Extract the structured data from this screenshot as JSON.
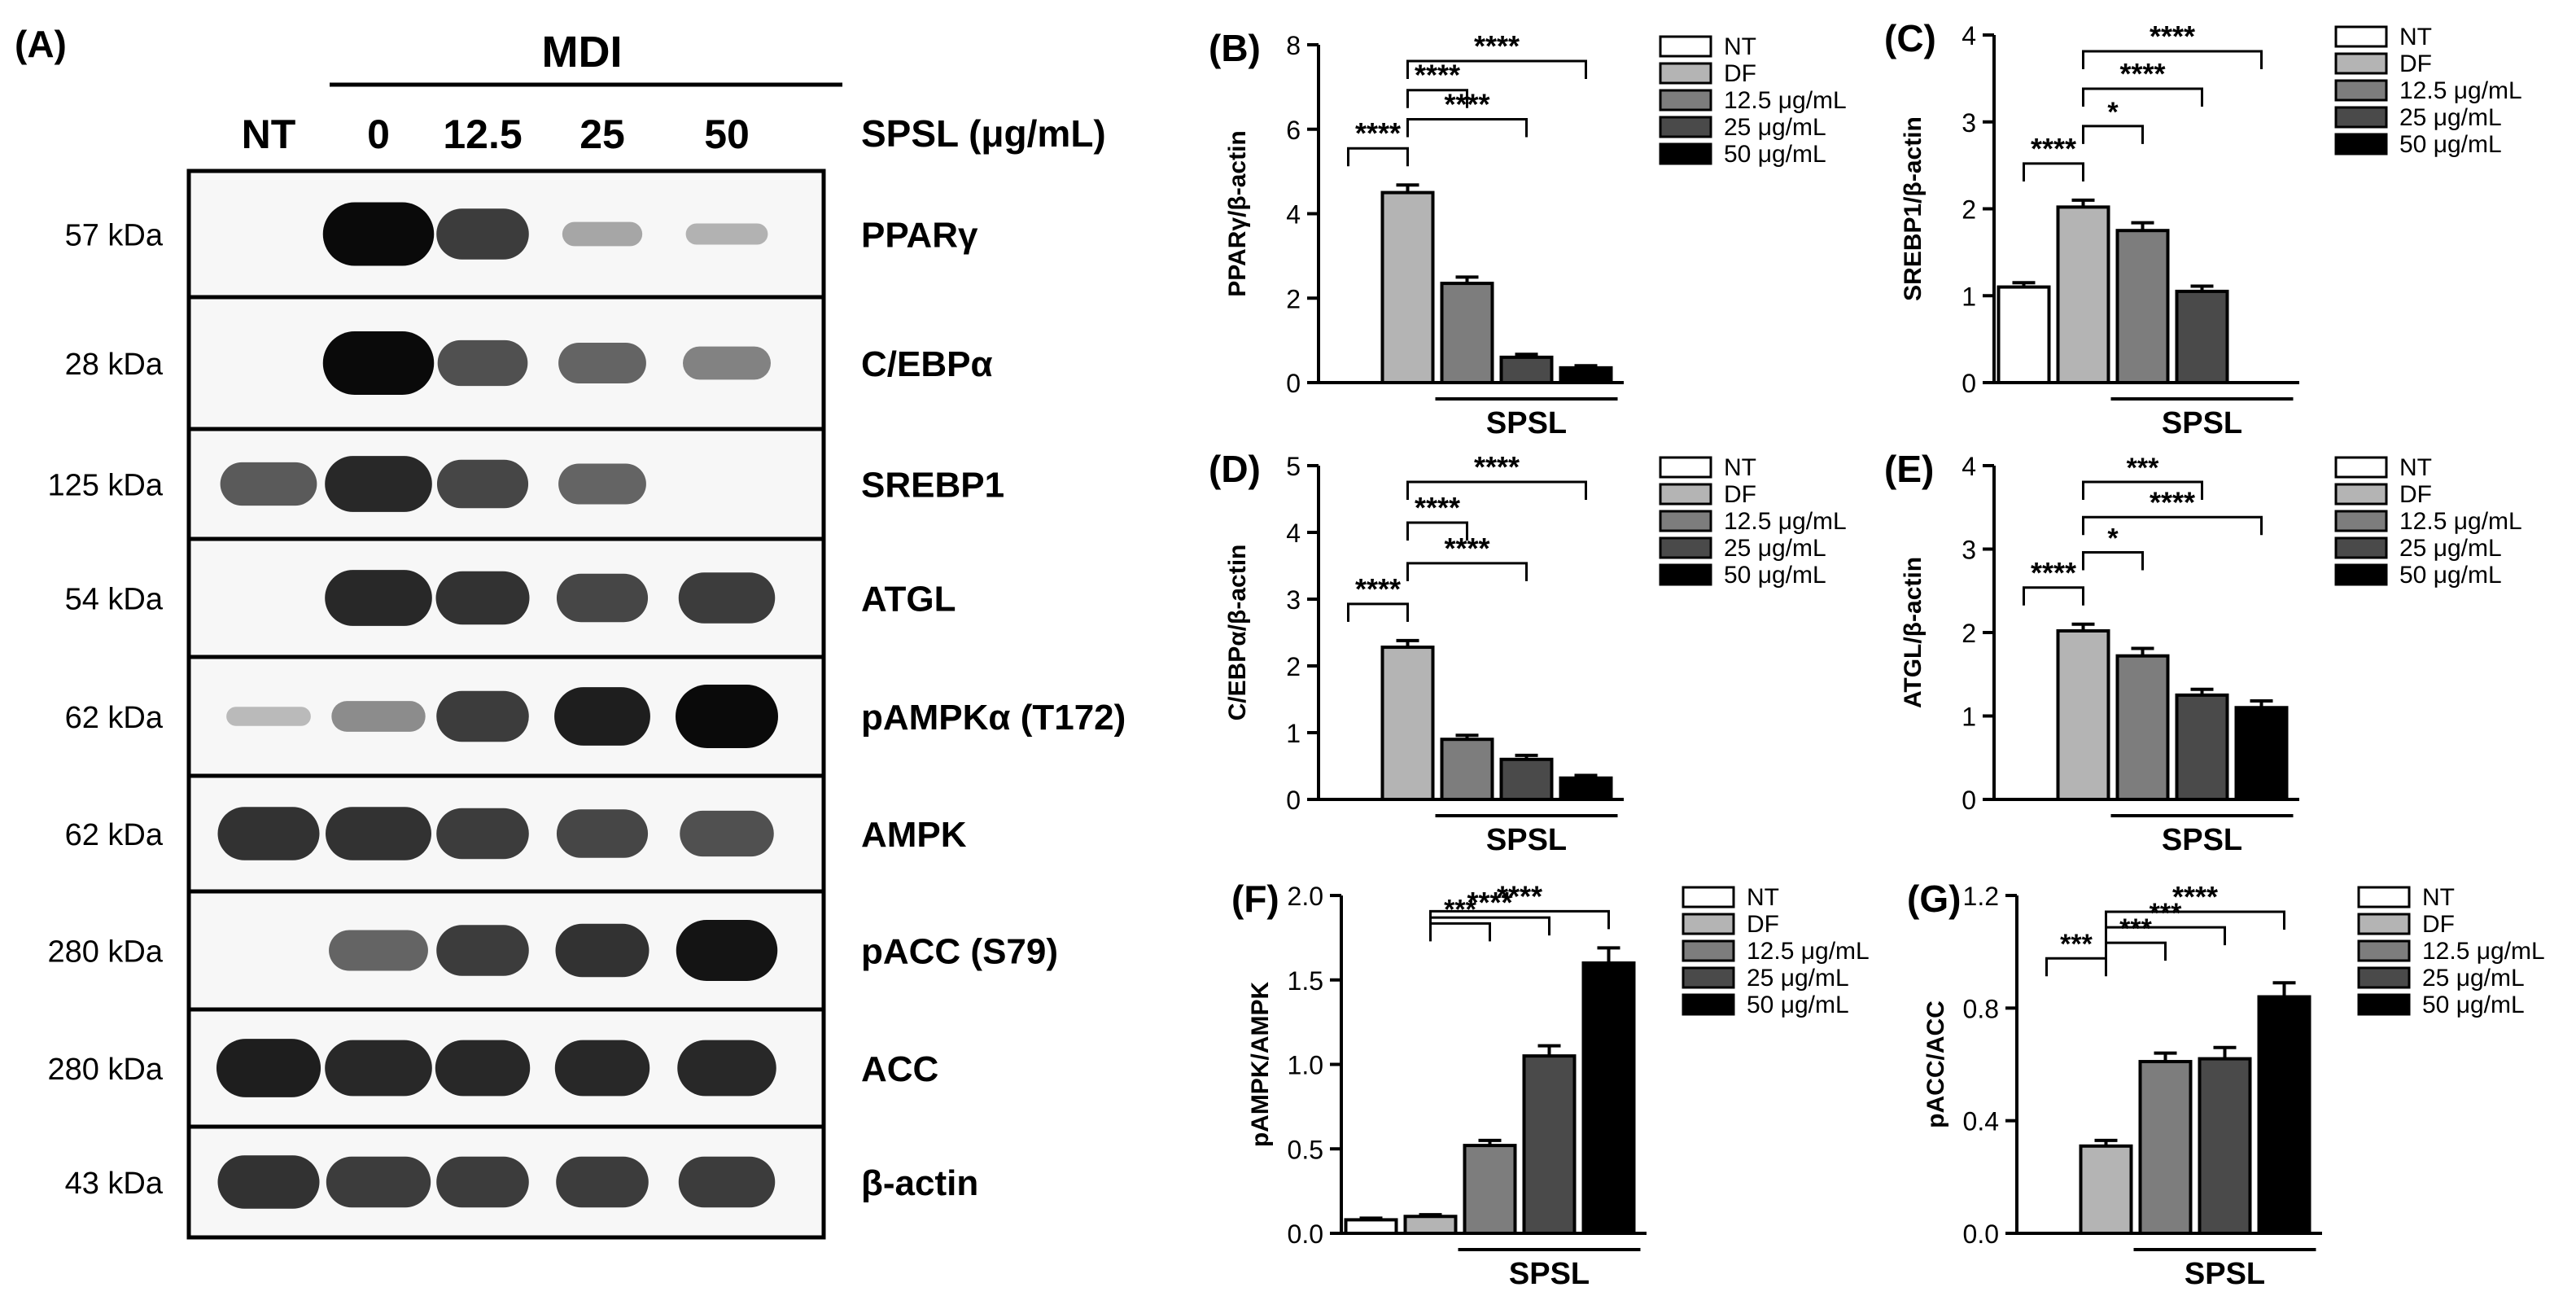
{
  "blot": {
    "panel_label": "(A)",
    "condition_label": "MDI",
    "treatment_label": "SPSL (μg/mL)",
    "lane_labels": [
      "NT",
      "0",
      "12.5",
      "25",
      "50"
    ],
    "rows": [
      {
        "kda": "57 kDa",
        "protein": "PPARγ",
        "bands": [
          0.0,
          1.0,
          0.75,
          0.22,
          0.16
        ]
      },
      {
        "kda": "28 kDa",
        "protein": "C/EBPα",
        "bands": [
          0.0,
          1.0,
          0.65,
          0.55,
          0.4
        ]
      },
      {
        "kda": "125 kDa",
        "protein": "SREBP1",
        "bands": [
          0.6,
          0.85,
          0.7,
          0.55,
          0.0
        ]
      },
      {
        "kda": "54 kDa",
        "protein": "ATGL",
        "bands": [
          0.0,
          0.85,
          0.8,
          0.7,
          0.75
        ]
      },
      {
        "kda": "62 kDa",
        "protein": "pAMPKα (T172)",
        "bands": [
          0.12,
          0.35,
          0.75,
          0.9,
          1.0
        ]
      },
      {
        "kda": "62 kDa",
        "protein": "AMPK",
        "bands": [
          0.8,
          0.8,
          0.75,
          0.7,
          0.65
        ]
      },
      {
        "kda": "280 kDa",
        "protein": "pACC (S79)",
        "bands": [
          0.0,
          0.55,
          0.75,
          0.8,
          0.95
        ]
      },
      {
        "kda": "280 kDa",
        "protein": "ACC",
        "bands": [
          0.9,
          0.85,
          0.85,
          0.85,
          0.85
        ]
      },
      {
        "kda": "43 kDa",
        "protein": "β-actin",
        "bands": [
          0.8,
          0.75,
          0.75,
          0.75,
          0.75
        ]
      }
    ]
  },
  "legend_entries": [
    "NT",
    "DF",
    "12.5 μg/mL",
    "25 μg/mL",
    "50 μg/mL"
  ],
  "colors": {
    "NT": "#ffffff",
    "DF": "#b4b4b4",
    "12.5 μg/mL": "#7d7d7d",
    "25 μg/mL": "#4a4a4a",
    "50 μg/mL": "#000000"
  },
  "chart_data": [
    {
      "panel": "(B)",
      "type": "bar",
      "ylabel": "PPARγ/β-actin",
      "xlabel": "SPSL",
      "categories": [
        "NT",
        "DF",
        "12.5 μg/mL",
        "25 μg/mL",
        "50 μg/mL"
      ],
      "values": [
        0,
        4.5,
        2.35,
        0.6,
        0.35
      ],
      "errors": [
        0,
        0.18,
        0.15,
        0.07,
        0.05
      ],
      "ylim": [
        0,
        8
      ],
      "yticks": [
        "0",
        "2",
        "4",
        "6",
        "8"
      ],
      "legend_position": "top-right",
      "annotations": [
        {
          "from": "NT",
          "to": "DF",
          "label": "****"
        },
        {
          "from": "DF",
          "to": "25 μg/mL",
          "label": "****"
        },
        {
          "from": "DF",
          "to": "12.5 μg/mL",
          "label": "****"
        },
        {
          "from": "DF",
          "to": "50 μg/mL",
          "label": "****"
        }
      ]
    },
    {
      "panel": "(C)",
      "type": "bar",
      "ylabel": "SREBP1/β-actin",
      "xlabel": "SPSL",
      "categories": [
        "NT",
        "DF",
        "12.5 μg/mL",
        "25 μg/mL",
        "50 μg/mL"
      ],
      "values": [
        1.1,
        2.02,
        1.75,
        1.05,
        0
      ],
      "errors": [
        0.05,
        0.08,
        0.09,
        0.06,
        0
      ],
      "ylim": [
        0,
        4
      ],
      "yticks": [
        "0",
        "1",
        "2",
        "3",
        "4"
      ],
      "legend_position": "top-right",
      "annotations": [
        {
          "from": "NT",
          "to": "DF",
          "label": "****"
        },
        {
          "from": "DF",
          "to": "12.5 μg/mL",
          "label": "*"
        },
        {
          "from": "DF",
          "to": "25 μg/mL",
          "label": "****"
        },
        {
          "from": "DF",
          "to": "50 μg/mL",
          "label": "****"
        }
      ]
    },
    {
      "panel": "(D)",
      "type": "bar",
      "ylabel": "C/EBPα/β-actin",
      "xlabel": "SPSL",
      "categories": [
        "NT",
        "DF",
        "12.5 μg/mL",
        "25 μg/mL",
        "50 μg/mL"
      ],
      "values": [
        0,
        2.28,
        0.9,
        0.6,
        0.32
      ],
      "errors": [
        0,
        0.1,
        0.06,
        0.06,
        0.04
      ],
      "ylim": [
        0,
        5
      ],
      "yticks": [
        "0",
        "1",
        "2",
        "3",
        "4",
        "5"
      ],
      "legend_position": "top-right",
      "annotations": [
        {
          "from": "NT",
          "to": "DF",
          "label": "****"
        },
        {
          "from": "DF",
          "to": "25 μg/mL",
          "label": "****"
        },
        {
          "from": "DF",
          "to": "12.5 μg/mL",
          "label": "****"
        },
        {
          "from": "DF",
          "to": "50 μg/mL",
          "label": "****"
        }
      ]
    },
    {
      "panel": "(E)",
      "type": "bar",
      "ylabel": "ATGL/β-actin",
      "xlabel": "SPSL",
      "categories": [
        "NT",
        "DF",
        "12.5 μg/mL",
        "25 μg/mL",
        "50 μg/mL"
      ],
      "values": [
        0,
        2.02,
        1.72,
        1.25,
        1.1
      ],
      "errors": [
        0,
        0.08,
        0.09,
        0.07,
        0.08
      ],
      "ylim": [
        0,
        4
      ],
      "yticks": [
        "0",
        "1",
        "2",
        "3",
        "4"
      ],
      "legend_position": "top-right",
      "annotations": [
        {
          "from": "NT",
          "to": "DF",
          "label": "****"
        },
        {
          "from": "DF",
          "to": "12.5 μg/mL",
          "label": "*"
        },
        {
          "from": "DF",
          "to": "50 μg/mL",
          "label": "****"
        },
        {
          "from": "DF",
          "to": "25 μg/mL",
          "label": "***"
        }
      ]
    },
    {
      "panel": "(F)",
      "type": "bar",
      "ylabel": "pAMPK/AMPK",
      "xlabel": "SPSL",
      "categories": [
        "NT",
        "DF",
        "12.5 μg/mL",
        "25 μg/mL",
        "50 μg/mL"
      ],
      "values": [
        0.08,
        0.1,
        0.52,
        1.05,
        1.6
      ],
      "errors": [
        0.01,
        0.01,
        0.03,
        0.06,
        0.09
      ],
      "ylim": [
        0,
        2
      ],
      "yticks": [
        "0.0",
        "0.5",
        "1.0",
        "1.5",
        "2.0"
      ],
      "legend_position": "top-right",
      "annotations": [
        {
          "from": "DF",
          "to": "12.5 μg/mL",
          "label": "***"
        },
        {
          "from": "DF",
          "to": "25 μg/mL",
          "label": "****"
        },
        {
          "from": "DF",
          "to": "50 μg/mL",
          "label": "****"
        }
      ]
    },
    {
      "panel": "(G)",
      "type": "bar",
      "ylabel": "pACC/ACC",
      "xlabel": "SPSL",
      "categories": [
        "NT",
        "DF",
        "12.5 μg/mL",
        "25 μg/mL",
        "50 μg/mL"
      ],
      "values": [
        0,
        0.31,
        0.61,
        0.62,
        0.84
      ],
      "errors": [
        0,
        0.02,
        0.03,
        0.04,
        0.05
      ],
      "ylim": [
        0,
        1.2
      ],
      "yticks": [
        "0.0",
        "0.4",
        "0.8",
        "1.2"
      ],
      "legend_position": "top-right",
      "annotations": [
        {
          "from": "NT",
          "to": "DF",
          "label": "***"
        },
        {
          "from": "DF",
          "to": "12.5 μg/mL",
          "label": "***"
        },
        {
          "from": "DF",
          "to": "25 μg/mL",
          "label": "***"
        },
        {
          "from": "DF",
          "to": "50 μg/mL",
          "label": "****"
        }
      ]
    }
  ]
}
